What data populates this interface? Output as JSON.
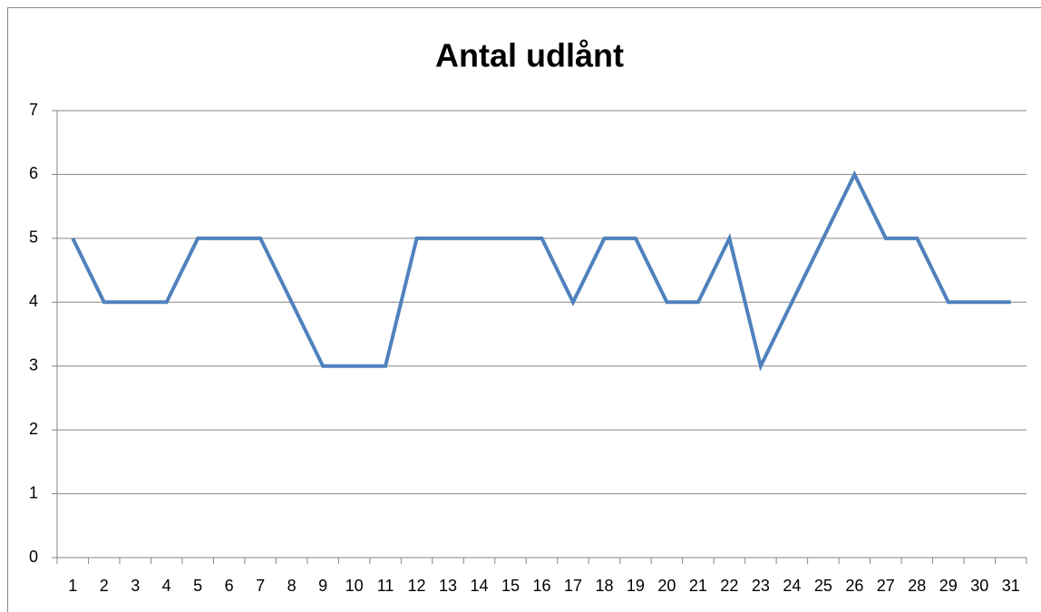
{
  "chart_data": {
    "type": "line",
    "title": "Antal udlånt",
    "categories": [
      "1",
      "2",
      "3",
      "4",
      "5",
      "6",
      "7",
      "8",
      "9",
      "10",
      "11",
      "12",
      "13",
      "14",
      "15",
      "16",
      "17",
      "18",
      "19",
      "20",
      "21",
      "22",
      "23",
      "24",
      "25",
      "26",
      "27",
      "28",
      "29",
      "30",
      "31"
    ],
    "series": [
      {
        "name": "Antal udlånt",
        "color": "#4f81bd",
        "values": [
          5,
          4,
          4,
          4,
          5,
          5,
          5,
          4,
          3,
          3,
          3,
          5,
          5,
          5,
          5,
          5,
          4,
          5,
          5,
          4,
          4,
          5,
          3,
          4,
          5,
          6,
          5,
          5,
          4,
          4,
          4
        ]
      }
    ],
    "ylim": [
      0,
      7
    ],
    "yticks": [
      0,
      1,
      2,
      3,
      4,
      5,
      6,
      7
    ],
    "grid": true
  }
}
